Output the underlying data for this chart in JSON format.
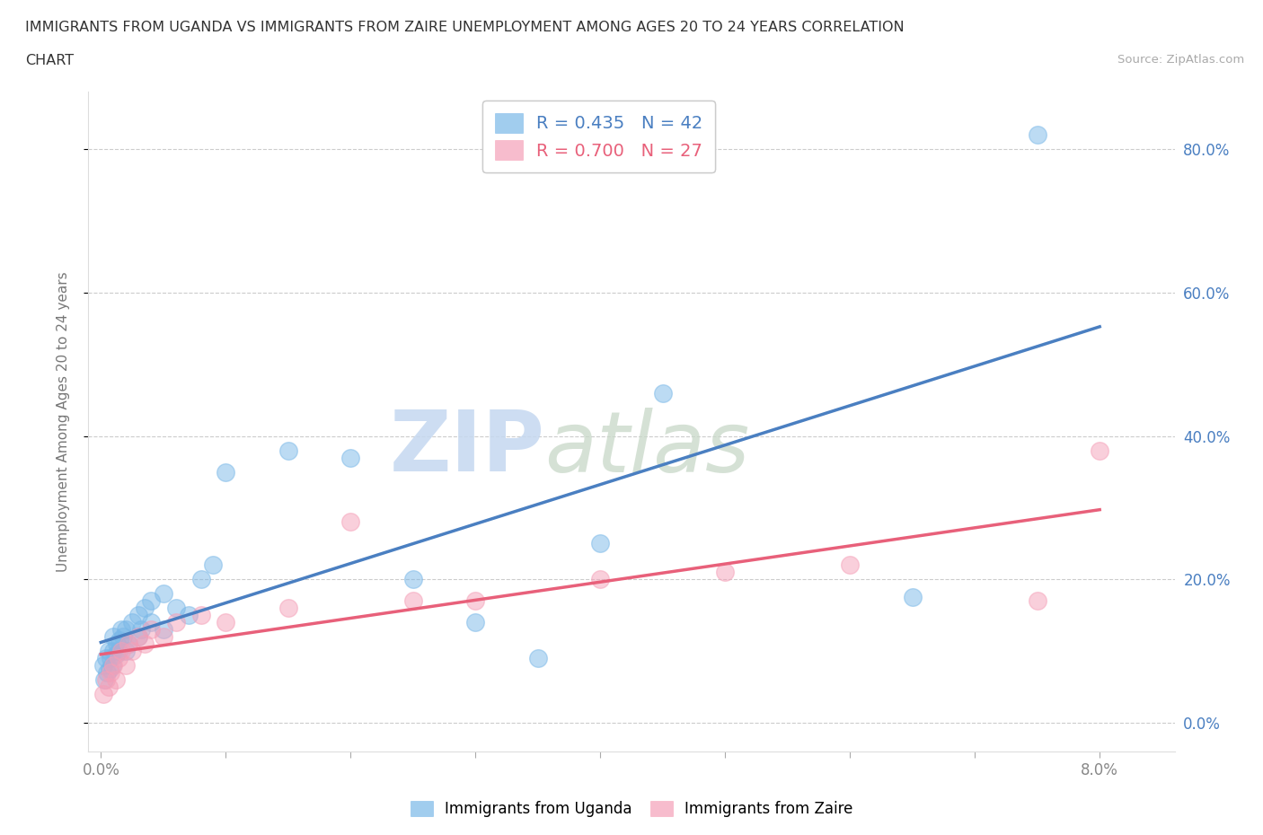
{
  "title_line1": "IMMIGRANTS FROM UGANDA VS IMMIGRANTS FROM ZAIRE UNEMPLOYMENT AMONG AGES 20 TO 24 YEARS CORRELATION",
  "title_line2": "CHART",
  "source": "Source: ZipAtlas.com",
  "ylabel": "Unemployment Among Ages 20 to 24 years",
  "uganda_color": "#7ab8e8",
  "zaire_color": "#f5a0b8",
  "uganda_line_color": "#4a7fc1",
  "zaire_line_color": "#e8607a",
  "uganda_R": 0.435,
  "uganda_N": 42,
  "zaire_R": 0.7,
  "zaire_N": 27,
  "watermark_zip": "ZIP",
  "watermark_atlas": "atlas",
  "legend_label_uganda": "Immigrants from Uganda",
  "legend_label_zaire": "Immigrants from Zaire",
  "background_color": "#ffffff",
  "grid_color": "#cccccc",
  "title_color": "#333333",
  "axis_label_color": "#777777",
  "tick_color_right": "#4a7fc1",
  "tick_color_bottom": "#888888",
  "uganda_x": [
    0.0002,
    0.0003,
    0.0004,
    0.0005,
    0.0006,
    0.0007,
    0.0008,
    0.0009,
    0.001,
    0.001,
    0.0012,
    0.0013,
    0.0014,
    0.0015,
    0.0016,
    0.0018,
    0.002,
    0.002,
    0.0022,
    0.0025,
    0.003,
    0.003,
    0.0032,
    0.0035,
    0.004,
    0.004,
    0.005,
    0.005,
    0.006,
    0.007,
    0.008,
    0.009,
    0.01,
    0.015,
    0.02,
    0.025,
    0.03,
    0.035,
    0.04,
    0.045,
    0.065,
    0.075
  ],
  "uganda_y": [
    0.08,
    0.06,
    0.09,
    0.07,
    0.1,
    0.075,
    0.09,
    0.08,
    0.1,
    0.12,
    0.095,
    0.11,
    0.1,
    0.115,
    0.13,
    0.12,
    0.1,
    0.13,
    0.11,
    0.14,
    0.12,
    0.15,
    0.13,
    0.16,
    0.14,
    0.17,
    0.13,
    0.18,
    0.16,
    0.15,
    0.2,
    0.22,
    0.35,
    0.38,
    0.37,
    0.2,
    0.14,
    0.09,
    0.25,
    0.46,
    0.175,
    0.82
  ],
  "zaire_x": [
    0.0002,
    0.0004,
    0.0006,
    0.0008,
    0.001,
    0.0012,
    0.0014,
    0.0016,
    0.002,
    0.0022,
    0.0025,
    0.003,
    0.0035,
    0.004,
    0.005,
    0.006,
    0.008,
    0.01,
    0.015,
    0.02,
    0.025,
    0.03,
    0.04,
    0.05,
    0.06,
    0.075,
    0.08
  ],
  "zaire_y": [
    0.04,
    0.06,
    0.05,
    0.07,
    0.08,
    0.06,
    0.09,
    0.1,
    0.08,
    0.11,
    0.1,
    0.12,
    0.11,
    0.13,
    0.12,
    0.14,
    0.15,
    0.14,
    0.16,
    0.28,
    0.17,
    0.17,
    0.2,
    0.21,
    0.22,
    0.17,
    0.38
  ],
  "xlim": [
    -0.001,
    0.086
  ],
  "ylim": [
    -0.04,
    0.88
  ],
  "xticks_major": [
    0.0,
    0.01,
    0.02,
    0.03,
    0.04,
    0.05,
    0.06,
    0.07,
    0.08
  ],
  "xticks_labeled": [
    0.0,
    0.08
  ],
  "yticks_right": [
    0.0,
    0.2,
    0.4,
    0.6,
    0.8
  ]
}
